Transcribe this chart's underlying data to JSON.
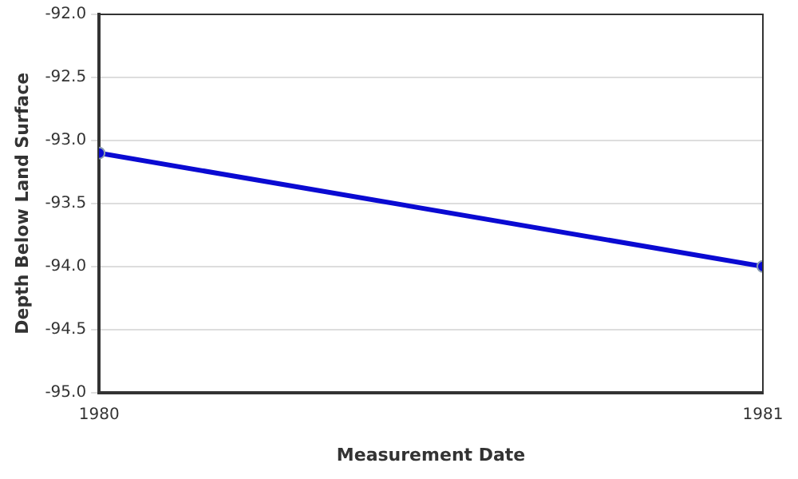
{
  "chart_data": {
    "type": "line",
    "xlabel": "Measurement Date",
    "ylabel": "Depth Below Land Surface",
    "x": [
      1980,
      1981
    ],
    "series": [
      {
        "color": "#0a0ad2",
        "values": [
          -93.1,
          -94.0
        ]
      }
    ],
    "xlim": [
      1980,
      1981
    ],
    "xticks": [
      1980,
      1981
    ],
    "ylim": [
      -95,
      -92
    ],
    "yticks": [
      {
        "value": -95,
        "label": "-95.0"
      },
      {
        "value": -94.5,
        "label": "-94.5"
      },
      {
        "value": -94,
        "label": "-94.0"
      },
      {
        "value": -93.5,
        "label": "-93.5"
      },
      {
        "value": -93,
        "label": "-93.0"
      },
      {
        "value": -92.5,
        "label": "-92.5"
      },
      {
        "value": -92,
        "label": "-92.0"
      }
    ],
    "grid": "y",
    "legend": false,
    "marker": "circle",
    "line_style": "solid"
  }
}
